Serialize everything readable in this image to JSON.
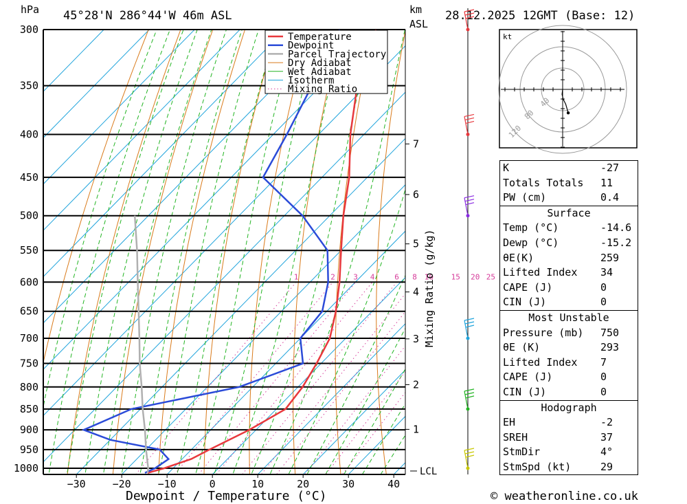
{
  "header": {
    "location": "45°28'N  286°44'W  46m  ASL",
    "datetime": "28.12.2025  12GMT  (Base: 12)",
    "pressure_unit": "hPa",
    "height_unit_line1": "km",
    "height_unit_line2": "ASL"
  },
  "footer": {
    "copyright": "© weatheronline.co.uk"
  },
  "chart_data": {
    "type": "skew-t log-p",
    "xlabel": "Dewpoint / Temperature (°C)",
    "mixing_ratio_label": "Mixing Ratio (g/kg)",
    "x_ticks": [
      -30,
      -20,
      -10,
      0,
      10,
      20,
      30,
      40
    ],
    "pressure_levels": [
      300,
      350,
      400,
      450,
      500,
      550,
      600,
      650,
      700,
      750,
      800,
      850,
      900,
      950,
      1000
    ],
    "ylim_hpa": [
      1000,
      300
    ],
    "height_ticks_km": [
      1,
      2,
      3,
      4,
      5,
      6,
      7
    ],
    "mixing_ratio_values": [
      1,
      2,
      3,
      4,
      6,
      8,
      10,
      15,
      20,
      25
    ],
    "lcl_label": "LCL",
    "legend": [
      "Temperature",
      "Dewpoint",
      "Parcel Trajectory",
      "Dry Adiabat",
      "Wet Adiabat",
      "Isotherm",
      "Mixing Ratio"
    ],
    "colors": {
      "temperature": "#e8383d",
      "dewpoint": "#2b4bd8",
      "parcel": "#b0b0b0",
      "dry_adiabat": "#d97a1a",
      "wet_adiabat": "#22b422",
      "isotherm": "#20a4dc",
      "mixing_ratio": "#d63c9a"
    },
    "series": [
      {
        "name": "Temperature",
        "points": [
          {
            "p": 1013,
            "t": -14.6
          },
          {
            "p": 1000,
            "t": -12
          },
          {
            "p": 975,
            "t": -8
          },
          {
            "p": 950,
            "t": -6
          },
          {
            "p": 900,
            "t": -1.5
          },
          {
            "p": 850,
            "t": 2
          },
          {
            "p": 800,
            "t": 1
          },
          {
            "p": 750,
            "t": -1
          },
          {
            "p": 700,
            "t": -3.5
          },
          {
            "p": 650,
            "t": -8
          },
          {
            "p": 600,
            "t": -13.5
          },
          {
            "p": 550,
            "t": -20
          },
          {
            "p": 500,
            "t": -27
          },
          {
            "p": 450,
            "t": -34
          },
          {
            "p": 400,
            "t": -43
          },
          {
            "p": 350,
            "t": -52
          },
          {
            "p": 300,
            "t": -60
          }
        ]
      },
      {
        "name": "Dewpoint",
        "points": [
          {
            "p": 1013,
            "t": -15.2
          },
          {
            "p": 1000,
            "t": -14
          },
          {
            "p": 975,
            "t": -13
          },
          {
            "p": 950,
            "t": -17
          },
          {
            "p": 925,
            "t": -30
          },
          {
            "p": 900,
            "t": -38
          },
          {
            "p": 850,
            "t": -32
          },
          {
            "p": 800,
            "t": -13
          },
          {
            "p": 750,
            "t": -4
          },
          {
            "p": 700,
            "t": -10
          },
          {
            "p": 650,
            "t": -11
          },
          {
            "p": 600,
            "t": -16
          },
          {
            "p": 550,
            "t": -23
          },
          {
            "p": 500,
            "t": -36
          },
          {
            "p": 450,
            "t": -53
          },
          {
            "p": 400,
            "t": -57
          },
          {
            "p": 350,
            "t": -62
          },
          {
            "p": 300,
            "t": -68
          }
        ]
      },
      {
        "name": "Parcel Trajectory",
        "points": [
          {
            "p": 1013,
            "t": -14.6
          },
          {
            "p": 1000,
            "t": -15.5
          },
          {
            "p": 950,
            "t": -20
          },
          {
            "p": 900,
            "t": -24.5
          },
          {
            "p": 850,
            "t": -29.5
          },
          {
            "p": 800,
            "t": -34.5
          },
          {
            "p": 750,
            "t": -40
          },
          {
            "p": 700,
            "t": -45.5
          },
          {
            "p": 650,
            "t": -51.5
          },
          {
            "p": 600,
            "t": -58
          },
          {
            "p": 550,
            "t": -65
          },
          {
            "p": 500,
            "t": -73
          }
        ]
      }
    ],
    "wind_barbs_hpa": [
      300,
      400,
      500,
      700,
      850,
      1000
    ]
  },
  "hodograph": {
    "unit": "kt",
    "ring_labels": [
      "40",
      "80",
      "120"
    ],
    "points_kt": [
      [
        0,
        0
      ],
      [
        -1,
        -8
      ],
      [
        1,
        -16
      ],
      [
        5,
        -24
      ],
      [
        9,
        -38
      ]
    ]
  },
  "indices": {
    "basic": [
      {
        "label": "K",
        "value": "-27"
      },
      {
        "label": "Totals Totals",
        "value": "11"
      },
      {
        "label": "PW (cm)",
        "value": "0.4"
      }
    ],
    "surface": {
      "title": "Surface",
      "rows": [
        {
          "label": "Temp (°C)",
          "value": "-14.6"
        },
        {
          "label": "Dewp (°C)",
          "value": "-15.2"
        },
        {
          "label": "θE(K)",
          "value": "259"
        },
        {
          "label": "Lifted Index",
          "value": "34"
        },
        {
          "label": "CAPE (J)",
          "value": "0"
        },
        {
          "label": "CIN (J)",
          "value": "0"
        }
      ]
    },
    "most_unstable": {
      "title": "Most Unstable",
      "rows": [
        {
          "label": "Pressure (mb)",
          "value": "750"
        },
        {
          "label": "θE (K)",
          "value": "293"
        },
        {
          "label": "Lifted Index",
          "value": "7"
        },
        {
          "label": "CAPE (J)",
          "value": "0"
        },
        {
          "label": "CIN (J)",
          "value": "0"
        }
      ]
    },
    "hodograph": {
      "title": "Hodograph",
      "rows": [
        {
          "label": "EH",
          "value": "-2"
        },
        {
          "label": "SREH",
          "value": "37"
        },
        {
          "label": "StmDir",
          "value": "4°"
        },
        {
          "label": "StmSpd (kt)",
          "value": "29"
        }
      ]
    }
  }
}
